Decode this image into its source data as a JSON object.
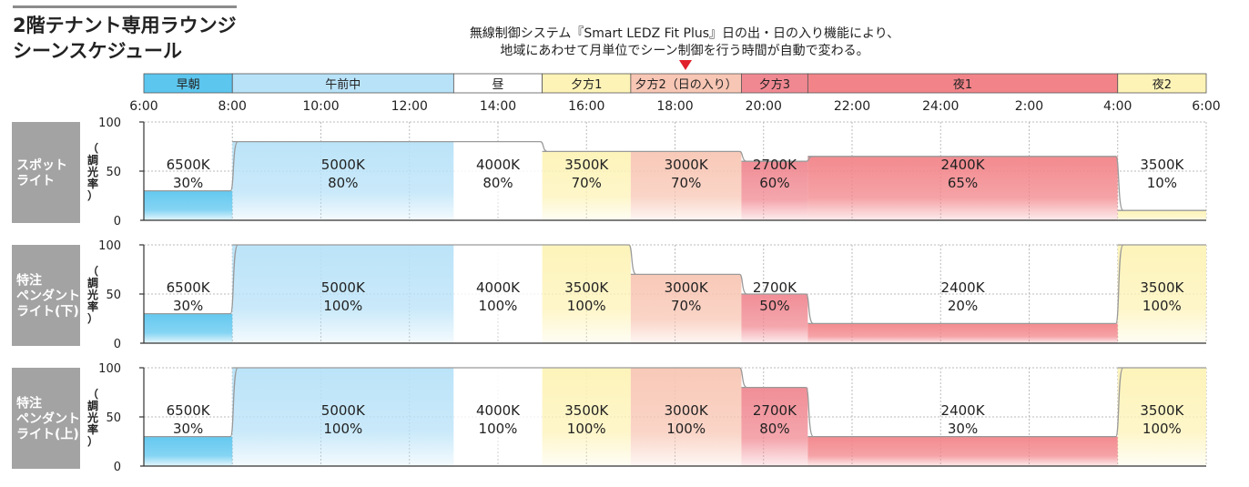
{
  "title": {
    "line1": "2階テナント専用ラウンジ",
    "line2": "シーンスケジュール"
  },
  "note": {
    "line1": "無線制御システム『Smart LEDZ Fit Plus』日の出・日の入り機能により、",
    "line2": "地域にあわせて月単位でシーン制御を行う時間が自動で変わる。"
  },
  "colors": {
    "morning": "#5cc6ef",
    "morning_light": "#9ed9f4",
    "am": "#b8e2f8",
    "noon": "#ffffff",
    "evening1": "#fdf3b7",
    "evening2": "#f8c6b4",
    "evening3": "#f08891",
    "night1": "#f28489",
    "night2": "#fdf3b7",
    "axis": "#333333",
    "grid": "#bbbbbb",
    "profile": "#9a9a9a",
    "rowlabel_bg": "#a3a3a3",
    "marker": "#e0202a"
  },
  "chart_data": {
    "type": "area",
    "x_unit": "time of day",
    "x_ticks": [
      "6:00",
      "8:00",
      "10:00",
      "12:00",
      "14:00",
      "16:00",
      "18:00",
      "20:00",
      "22:00",
      "24:00",
      "2:00",
      "4:00",
      "6:00"
    ],
    "ylim": [
      0,
      100
    ],
    "y_ticks": [
      "100",
      "50",
      "0"
    ],
    "ylabel": "調光率",
    "scenes": [
      {
        "name": "早朝",
        "start": "6:00",
        "end": "8:00",
        "color": "#5cc6ef"
      },
      {
        "name": "午前中",
        "start": "8:00",
        "end": "13:00",
        "color": "#b8e2f8"
      },
      {
        "name": "昼",
        "start": "13:00",
        "end": "15:00",
        "color": "#ffffff"
      },
      {
        "name": "夕方1",
        "start": "15:00",
        "end": "17:00",
        "color": "#fdf3b7"
      },
      {
        "name": "夕方2（日の入り）",
        "start": "17:00",
        "end": "19:30",
        "color": "#f8c6b4"
      },
      {
        "name": "夕方3",
        "start": "19:30",
        "end": "21:00",
        "color": "#f08891"
      },
      {
        "name": "夜1",
        "start": "21:00",
        "end": "4:00",
        "color": "#f28489"
      },
      {
        "name": "夜2",
        "start": "4:00",
        "end": "6:00",
        "color": "#fdf3b7"
      }
    ],
    "series": [
      {
        "name": "スポットライト",
        "values": [
          {
            "scene": "早朝",
            "k": "6500K",
            "pct": 30
          },
          {
            "scene": "午前中",
            "k": "5000K",
            "pct": 80
          },
          {
            "scene": "昼",
            "k": "4000K",
            "pct": 80
          },
          {
            "scene": "夕方1",
            "k": "3500K",
            "pct": 70
          },
          {
            "scene": "夕方2（日の入り）",
            "k": "3000K",
            "pct": 70
          },
          {
            "scene": "夕方3",
            "k": "2700K",
            "pct": 60
          },
          {
            "scene": "夜1",
            "k": "2400K",
            "pct": 65
          },
          {
            "scene": "夜2",
            "k": "3500K",
            "pct": 10
          }
        ]
      },
      {
        "name": "特注ペンダントライト（下）",
        "values": [
          {
            "scene": "早朝",
            "k": "6500K",
            "pct": 30
          },
          {
            "scene": "午前中",
            "k": "5000K",
            "pct": 100
          },
          {
            "scene": "昼",
            "k": "4000K",
            "pct": 100
          },
          {
            "scene": "夕方1",
            "k": "3500K",
            "pct": 100
          },
          {
            "scene": "夕方2（日の入り）",
            "k": "3000K",
            "pct": 70
          },
          {
            "scene": "夕方3",
            "k": "2700K",
            "pct": 50
          },
          {
            "scene": "夜1",
            "k": "2400K",
            "pct": 20
          },
          {
            "scene": "夜2",
            "k": "3500K",
            "pct": 100
          }
        ]
      },
      {
        "name": "特注ペンダントライト（上）",
        "values": [
          {
            "scene": "早朝",
            "k": "6500K",
            "pct": 30
          },
          {
            "scene": "午前中",
            "k": "5000K",
            "pct": 100
          },
          {
            "scene": "昼",
            "k": "4000K",
            "pct": 100
          },
          {
            "scene": "夕方1",
            "k": "3500K",
            "pct": 100
          },
          {
            "scene": "夕方2（日の入り）",
            "k": "3000K",
            "pct": 100
          },
          {
            "scene": "夕方3",
            "k": "2700K",
            "pct": 80
          },
          {
            "scene": "夜1",
            "k": "2400K",
            "pct": 30
          },
          {
            "scene": "夜2",
            "k": "3500K",
            "pct": 100
          }
        ]
      }
    ]
  },
  "row_labels": [
    [
      "スポット",
      "ライト"
    ],
    [
      "特注",
      "ペンダント",
      "ライト(下)"
    ],
    [
      "特注",
      "ペンダント",
      "ライト(上)"
    ]
  ],
  "ylabel_chars": [
    "（",
    "調",
    "光",
    "率",
    "）"
  ]
}
